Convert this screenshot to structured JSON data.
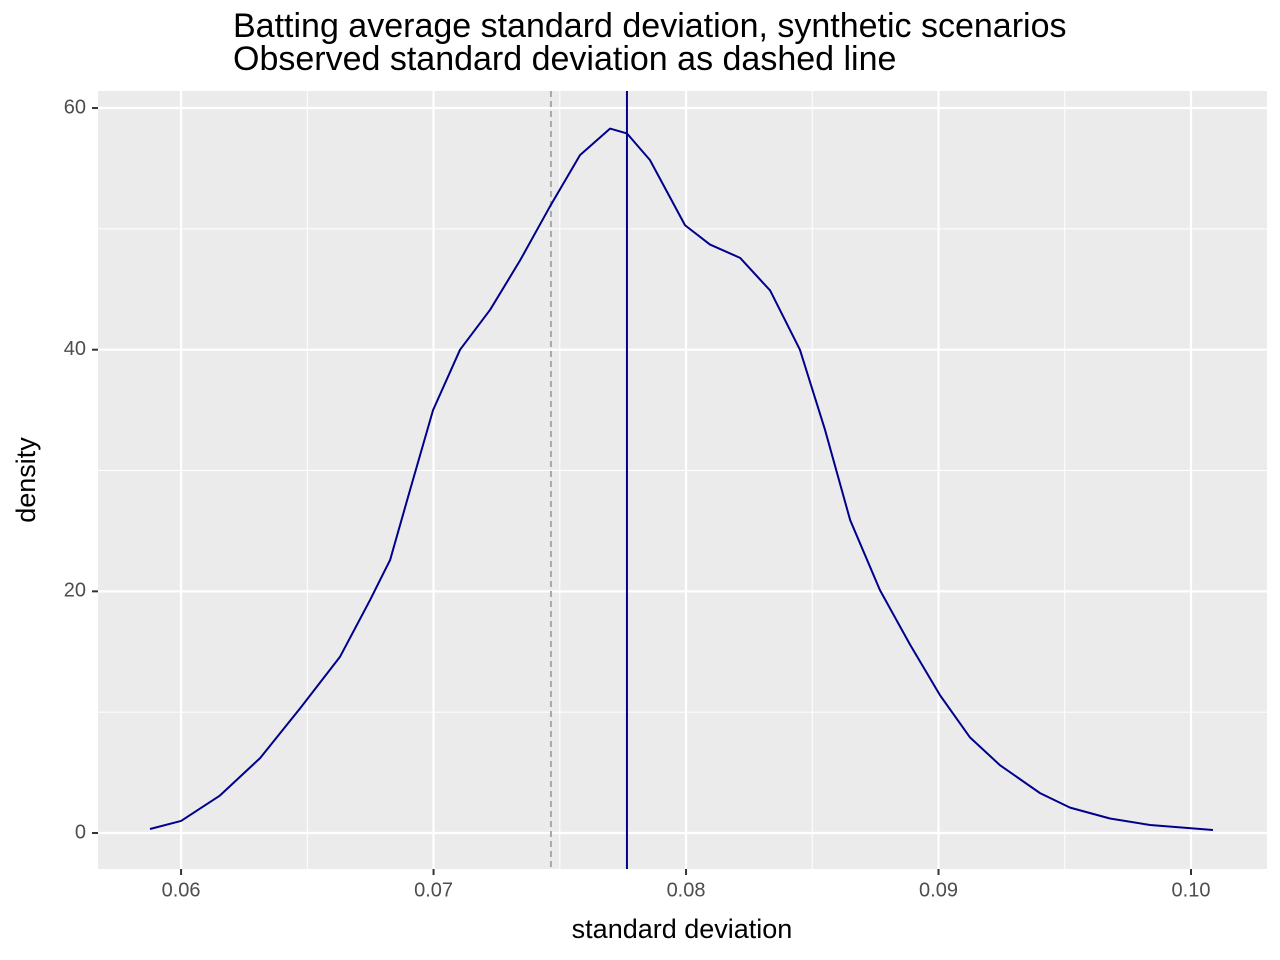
{
  "chart_data": {
    "type": "density",
    "title": "Batting average standard deviation, synthetic scenarios",
    "subtitle": "Observed standard deviation as dashed line",
    "xlabel": "standard deviation",
    "ylabel": "density",
    "x": [
      0.05877,
      0.06,
      0.06154,
      0.06313,
      0.06471,
      0.0663,
      0.06749,
      0.06828,
      0.06907,
      0.06998,
      0.07105,
      0.07224,
      0.07343,
      0.07465,
      0.0758,
      0.07699,
      0.07766,
      0.07857,
      0.07996,
      0.08095,
      0.08214,
      0.08333,
      0.08451,
      0.0855,
      0.0865,
      0.08768,
      0.08887,
      0.09006,
      0.09125,
      0.09244,
      0.09402,
      0.09521,
      0.09679,
      0.09838,
      0.10087
    ],
    "series": [
      {
        "color": "#00008b",
        "values": [
          0.33,
          1.0,
          3.1,
          6.2,
          10.3,
          14.6,
          19.3,
          22.6,
          28.4,
          35.0,
          40.0,
          43.3,
          47.4,
          52.0,
          56.1,
          58.3,
          57.9,
          55.7,
          50.3,
          48.7,
          47.6,
          44.9,
          40.0,
          33.4,
          25.9,
          20.1,
          15.6,
          11.4,
          7.9,
          5.6,
          3.3,
          2.1,
          1.2,
          0.66,
          0.25
        ]
      }
    ],
    "vlines": [
      {
        "value": 0.07465,
        "color": "#a9a9a9",
        "dashed": true
      },
      {
        "value": 0.07766,
        "color": "#00008b",
        "dashed": false
      }
    ],
    "xlim": [
      0.05671,
      0.10301
    ],
    "ylim": [
      -2.98,
      61.41
    ],
    "xticks": [
      0.06,
      0.07,
      0.08,
      0.09,
      {
        "value": 0.1,
        "label": "0.10"
      }
    ],
    "yticks": [
      0,
      20,
      40,
      60
    ],
    "x_minor_ticks": [
      0.065,
      0.075,
      0.085,
      0.095
    ],
    "y_minor_ticks": [
      10,
      30,
      50
    ],
    "grid": true
  }
}
